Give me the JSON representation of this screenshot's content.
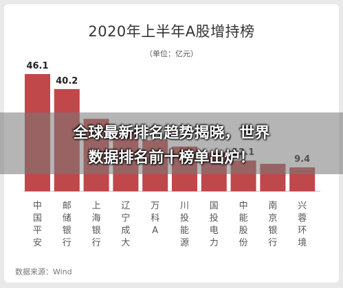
{
  "chart_data": {
    "type": "bar",
    "title": "2020年上半年A股增持榜",
    "subtitle": "（单位：亿元）",
    "categories": [
      "中国平安",
      "邮储银行",
      "上海银行",
      "辽宁成大",
      "万科A",
      "川投能源",
      "国投电力",
      "中能股份",
      "南京银行",
      "兴蓉环境"
    ],
    "values": [
      46.1,
      40.2,
      28.5,
      24.3,
      20.1,
      17.6,
      15.2,
      12.1,
      10.8,
      9.4
    ],
    "value_labels": [
      "46.1",
      "40.2",
      "",
      "",
      "",
      "",
      "",
      "12.1",
      "",
      "9.4"
    ],
    "ylim": [
      0,
      50
    ],
    "bar_color": "#c0474a",
    "source": "数据来源：Wind"
  },
  "banner": {
    "line1": "全球最新排名趋势揭晓，世界",
    "line2": "数据排名前十榜单出炉！"
  }
}
